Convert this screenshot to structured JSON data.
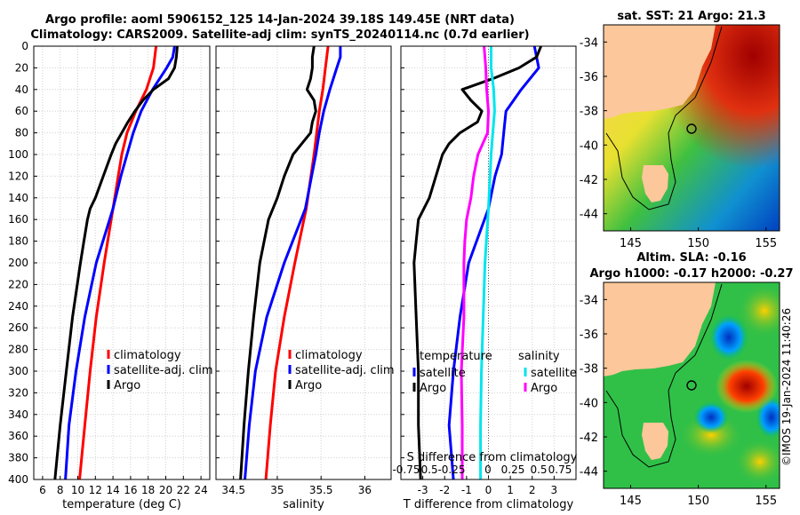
{
  "title_line1": "Argo profile: aoml 5906152_125 14-Jan-2024 39.18S 149.45E (NRT data)",
  "title_line2": "Climatology: CARS2009. Satellite-adj clim: synTS_20240114.nc (0.7d earlier)",
  "credit": "©IMOS 19-Jan-2024 11:40:26",
  "colors": {
    "climatology": "#ff0000",
    "satellite": "#0000ff",
    "argo": "#000000",
    "argo_sal_diff": "#ff00ff",
    "sat_sal_diff": "#00e5ee"
  },
  "chart_data": [
    {
      "type": "line",
      "title": "",
      "xlabel": "temperature (deg C)",
      "ylabel": "",
      "xlim": [
        5,
        25
      ],
      "ylim": [
        400,
        0
      ],
      "xticks": [
        "6",
        "8",
        "10",
        "12",
        "14",
        "16",
        "18",
        "20",
        "22",
        "24"
      ],
      "yticks": [
        "0",
        "20",
        "40",
        "60",
        "80",
        "100",
        "120",
        "140",
        "160",
        "180",
        "200",
        "220",
        "240",
        "260",
        "280",
        "300",
        "320",
        "340",
        "360",
        "380",
        "400"
      ],
      "legend": [
        "climatology",
        "satellite-adj. clim",
        "Argo"
      ],
      "series": [
        {
          "name": "climatology",
          "depth": [
            0,
            20,
            40,
            60,
            80,
            100,
            120,
            150,
            200,
            250,
            300,
            350,
            400
          ],
          "values": [
            18.9,
            18.6,
            17.8,
            16.6,
            15.6,
            15.0,
            14.6,
            14.0,
            13.0,
            12.1,
            11.4,
            10.8,
            10.2
          ]
        },
        {
          "name": "satellite-adj. clim",
          "depth": [
            0,
            10,
            20,
            40,
            60,
            80,
            100,
            120,
            150,
            200,
            250,
            300,
            350,
            400
          ],
          "values": [
            21.0,
            20.8,
            20.1,
            18.5,
            17.2,
            16.3,
            15.6,
            14.9,
            14.0,
            12.1,
            10.8,
            9.8,
            9.0,
            8.6
          ]
        },
        {
          "name": "Argo",
          "depth": [
            0,
            10,
            20,
            30,
            40,
            50,
            60,
            70,
            80,
            90,
            100,
            120,
            140,
            150,
            160,
            180,
            200,
            250,
            300,
            350,
            400
          ],
          "values": [
            21.3,
            21.2,
            21.0,
            20.3,
            18.6,
            17.4,
            16.5,
            15.7,
            15.0,
            14.3,
            13.8,
            12.9,
            12.0,
            11.4,
            11.1,
            10.7,
            10.3,
            9.4,
            8.7,
            8.0,
            7.4
          ]
        }
      ]
    },
    {
      "type": "line",
      "title": "",
      "xlabel": "salinity",
      "ylabel": "",
      "xlim": [
        34.3,
        36.3
      ],
      "ylim": [
        400,
        0
      ],
      "xticks": [
        "34.5",
        "35",
        "35.5",
        "36"
      ],
      "legend": [
        "climatology",
        "satellite-adj. clim",
        "Argo"
      ],
      "series": [
        {
          "name": "climatology",
          "depth": [
            0,
            20,
            40,
            60,
            80,
            100,
            150,
            200,
            250,
            300,
            350,
            400
          ],
          "values": [
            35.58,
            35.55,
            35.52,
            35.48,
            35.45,
            35.42,
            35.33,
            35.2,
            35.08,
            34.98,
            34.92,
            34.87
          ]
        },
        {
          "name": "satellite-adj. clim",
          "depth": [
            0,
            10,
            20,
            40,
            60,
            80,
            100,
            150,
            200,
            250,
            300,
            350,
            400
          ],
          "values": [
            35.72,
            35.72,
            35.68,
            35.6,
            35.53,
            35.48,
            35.44,
            35.32,
            35.08,
            34.88,
            34.75,
            34.68,
            34.63
          ]
        },
        {
          "name": "Argo",
          "depth": [
            0,
            10,
            20,
            30,
            40,
            50,
            60,
            70,
            80,
            90,
            100,
            120,
            140,
            160,
            180,
            200,
            250,
            300,
            350,
            400
          ],
          "values": [
            35.42,
            35.4,
            35.4,
            35.38,
            35.34,
            35.42,
            35.44,
            35.4,
            35.38,
            35.28,
            35.18,
            35.08,
            35.0,
            34.9,
            34.85,
            34.8,
            34.73,
            34.67,
            34.62,
            34.58
          ]
        }
      ]
    },
    {
      "type": "line",
      "title": "",
      "xlabel": "T difference from climatology",
      "x2label": "S difference from climatology",
      "ylabel": "",
      "xlim": [
        -4,
        4
      ],
      "ylim": [
        400,
        0
      ],
      "xticks": [
        "-3",
        "-2",
        "-1",
        "0",
        "1",
        "2",
        "3"
      ],
      "x2ticks": [
        "-0.75",
        "-0.5",
        "-0.25",
        "0",
        "0.25",
        "0.5",
        "0.75"
      ],
      "legend_temperature_header": "temperature",
      "legend_salinity_header": "salinity",
      "legend": [
        "satellite",
        "Argo",
        "satellite",
        "Argo"
      ],
      "series": [
        {
          "name": "temperature satellite",
          "depth": [
            0,
            20,
            40,
            60,
            80,
            100,
            120,
            150,
            200,
            250,
            300,
            350,
            400
          ],
          "values": [
            2.1,
            2.3,
            1.5,
            0.8,
            0.7,
            0.6,
            0.3,
            0,
            -0.9,
            -1.3,
            -1.6,
            -1.8,
            -1.6
          ]
        },
        {
          "name": "temperature Argo",
          "depth": [
            0,
            10,
            20,
            30,
            40,
            50,
            60,
            70,
            80,
            90,
            100,
            120,
            140,
            160,
            180,
            200,
            250,
            300,
            350,
            400
          ],
          "values": [
            2.4,
            2.2,
            1.4,
            0.2,
            -1.2,
            -0.8,
            -0.3,
            -0.5,
            -1.3,
            -1.8,
            -2.1,
            -2.4,
            -2.7,
            -3.2,
            -3.3,
            -3.4,
            -3.3,
            -3.2,
            -3.2,
            -3.1
          ]
        },
        {
          "name": "salinity satellite",
          "depth": [
            0,
            20,
            40,
            60,
            80,
            100,
            150,
            200,
            250,
            300,
            350,
            400
          ],
          "values": [
            0.03,
            0.03,
            0.06,
            0.07,
            0.05,
            0.03,
            0.0,
            -0.04,
            -0.06,
            -0.08,
            -0.09,
            -0.09
          ]
        },
        {
          "name": "salinity Argo",
          "depth": [
            0,
            20,
            40,
            60,
            80,
            100,
            120,
            140,
            160,
            180,
            200,
            250,
            300,
            350,
            400
          ],
          "values": [
            -0.05,
            -0.03,
            -0.02,
            0.0,
            -0.01,
            -0.12,
            -0.17,
            -0.2,
            -0.25,
            -0.27,
            -0.28,
            -0.28,
            -0.31,
            -0.3,
            -0.3
          ]
        }
      ]
    },
    {
      "type": "heatmap",
      "title": "sat. SST: 21 Argo: 21.3",
      "xlim": [
        143,
        156
      ],
      "ylim": [
        -45,
        -33
      ],
      "xticks": [
        "145",
        "150",
        "155"
      ],
      "yticks": [
        "-34",
        "-36",
        "-38",
        "-40",
        "-42",
        "-44"
      ],
      "profile_location": [
        149.45,
        -39.18
      ]
    },
    {
      "type": "heatmap",
      "title": "Altim. SLA: -0.16",
      "subtitle": "Argo h1000: -0.17 h2000: -0.27",
      "xlim": [
        143,
        156
      ],
      "ylim": [
        -45,
        -33
      ],
      "xticks": [
        "145",
        "150",
        "155"
      ],
      "yticks": [
        "-34",
        "-36",
        "-38",
        "-40",
        "-42",
        "-44"
      ],
      "profile_location": [
        149.45,
        -39.18
      ]
    }
  ]
}
